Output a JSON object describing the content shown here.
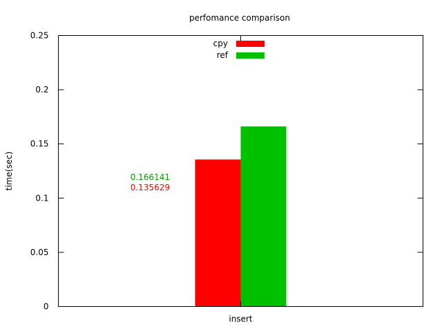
{
  "chart_data": {
    "type": "bar",
    "title": "perfomance comparison",
    "xlabel": "",
    "ylabel": "time(sec)",
    "categories": [
      "insert"
    ],
    "series": [
      {
        "name": "cpy",
        "values": [
          0.135629
        ],
        "color": "#ff0000"
      },
      {
        "name": "ref",
        "values": [
          0.166141
        ],
        "color": "#00c000"
      }
    ],
    "ylim": [
      0,
      0.25
    ],
    "yticks": [
      "0",
      "0.05",
      "0.1",
      "0.15",
      "0.2",
      "0.25"
    ],
    "annotations": [
      {
        "text": "0.166141",
        "color": "#00a000"
      },
      {
        "text": "0.135629",
        "color": "#ff0000"
      }
    ],
    "legend_position": "top-center",
    "grid": false
  }
}
